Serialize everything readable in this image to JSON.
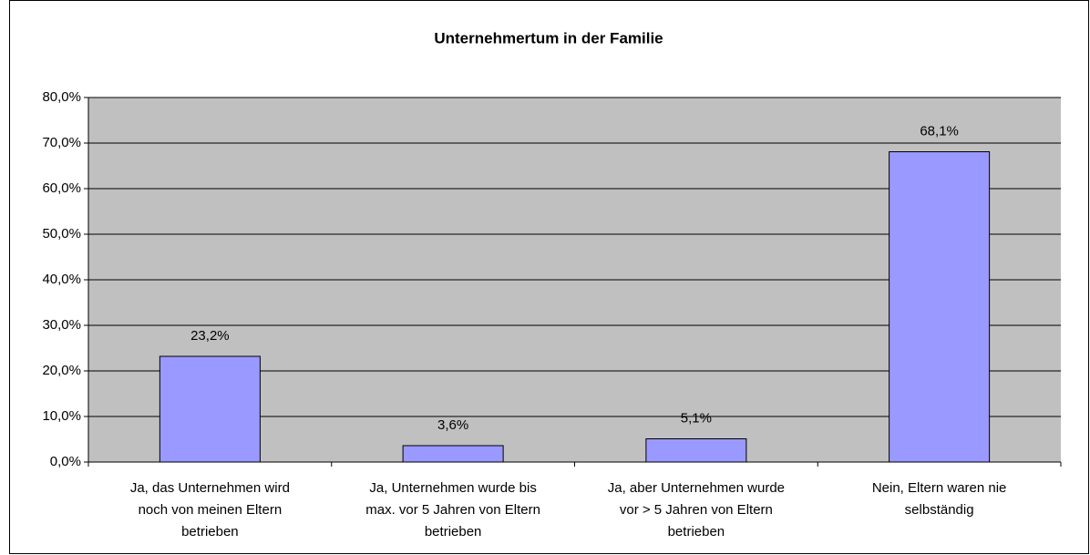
{
  "chart_data": {
    "type": "bar",
    "title": "Unternehmertum in der Familie",
    "categories": [
      [
        "Ja, das Unternehmen wird",
        "noch von meinen Eltern",
        "betrieben"
      ],
      [
        "Ja, Unternehmen wurde bis",
        "max. vor 5 Jahren von Eltern",
        "betrieben"
      ],
      [
        "Ja, aber Unternehmen wurde",
        "vor > 5 Jahren von Eltern",
        "betrieben"
      ],
      [
        "Nein, Eltern waren nie",
        "selbständig"
      ]
    ],
    "values": [
      23.2,
      3.6,
      5.1,
      68.1
    ],
    "value_labels": [
      "23,2%",
      "3,6%",
      "5,1%",
      "68,1%"
    ],
    "color": "#9999ff",
    "ylim": [
      0,
      80
    ],
    "yticks": [
      {
        "value": 0,
        "label": "0,0%"
      },
      {
        "value": 10,
        "label": "10,0%"
      },
      {
        "value": 20,
        "label": "20,0%"
      },
      {
        "value": 30,
        "label": "30,0%"
      },
      {
        "value": 40,
        "label": "40,0%"
      },
      {
        "value": 50,
        "label": "50,0%"
      },
      {
        "value": 60,
        "label": "60,0%"
      },
      {
        "value": 70,
        "label": "70,0%"
      },
      {
        "value": 80,
        "label": "80,0%"
      }
    ],
    "grid": true
  }
}
